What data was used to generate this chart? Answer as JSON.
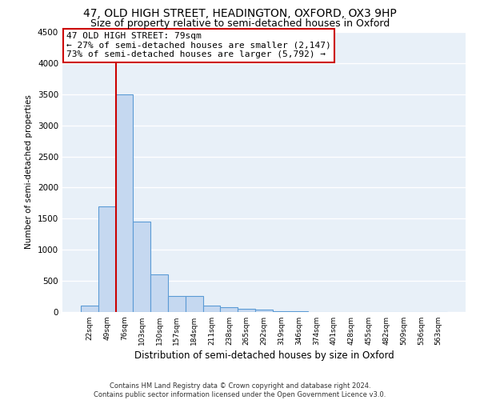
{
  "title_line1": "47, OLD HIGH STREET, HEADINGTON, OXFORD, OX3 9HP",
  "title_line2": "Size of property relative to semi-detached houses in Oxford",
  "xlabel": "Distribution of semi-detached houses by size in Oxford",
  "ylabel": "Number of semi-detached properties",
  "footnote": "Contains HM Land Registry data © Crown copyright and database right 2024.\nContains public sector information licensed under the Open Government Licence v3.0.",
  "categories": [
    "22sqm",
    "49sqm",
    "76sqm",
    "103sqm",
    "130sqm",
    "157sqm",
    "184sqm",
    "211sqm",
    "238sqm",
    "265sqm",
    "292sqm",
    "319sqm",
    "346sqm",
    "374sqm",
    "401sqm",
    "428sqm",
    "455sqm",
    "482sqm",
    "509sqm",
    "536sqm",
    "563sqm"
  ],
  "values": [
    100,
    1700,
    3500,
    1450,
    600,
    260,
    260,
    100,
    75,
    55,
    40,
    10,
    10,
    5,
    3,
    2,
    2,
    1,
    1,
    1,
    1
  ],
  "bar_color": "#c5d8f0",
  "bar_edge_color": "#5b9bd5",
  "vline_x_index": 2,
  "annotation_title": "47 OLD HIGH STREET: 79sqm",
  "annotation_line2": "← 27% of semi-detached houses are smaller (2,147)",
  "annotation_line3": "73% of semi-detached houses are larger (5,792) →",
  "vline_color": "#cc0000",
  "annotation_box_color": "#ffffff",
  "annotation_box_edge": "#cc0000",
  "ylim": [
    0,
    4500
  ],
  "yticks": [
    0,
    500,
    1000,
    1500,
    2000,
    2500,
    3000,
    3500,
    4000,
    4500
  ],
  "background_color": "#e8f0f8",
  "grid_color": "#ffffff",
  "title1_fontsize": 10,
  "title2_fontsize": 9,
  "annotation_fontsize": 8
}
